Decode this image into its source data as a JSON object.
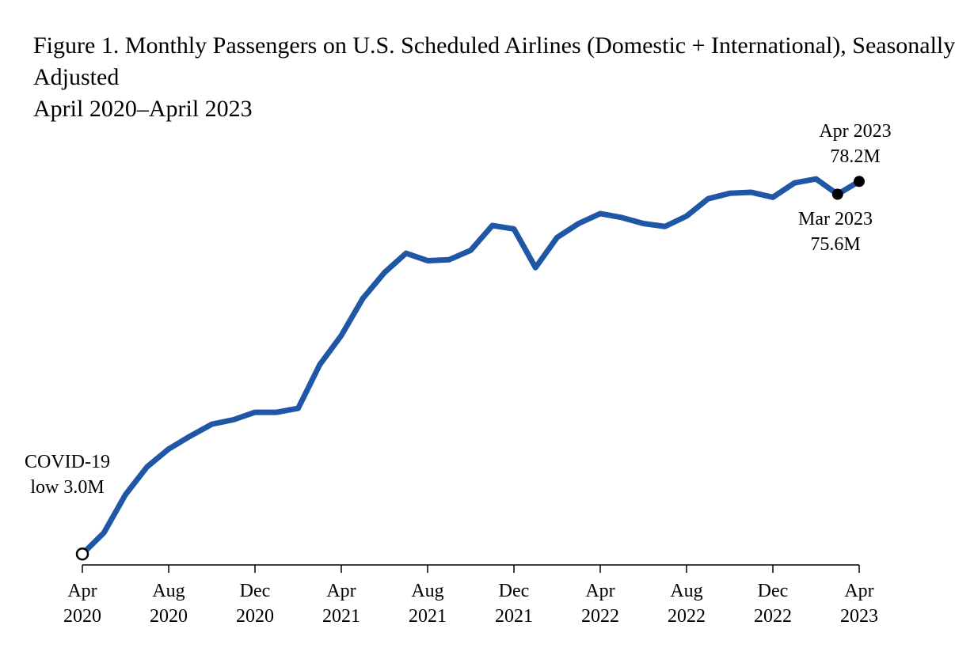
{
  "chart_data": {
    "type": "line",
    "title": "Figure 1. Monthly Passengers on U.S. Scheduled Airlines (Domestic + International), Seasonally Adjusted",
    "subtitle": "April 2020–April 2023",
    "categories": [
      "Apr 2020",
      null,
      null,
      null,
      "Aug 2020",
      null,
      null,
      null,
      "Dec 2020",
      null,
      null,
      null,
      "Apr 2021",
      null,
      null,
      null,
      "Aug 2021",
      null,
      null,
      null,
      "Dec 2021",
      null,
      null,
      null,
      "Apr 2022",
      null,
      null,
      null,
      "Aug 2022",
      null,
      null,
      null,
      "Dec 2022",
      null,
      null,
      null,
      "Apr 2023"
    ],
    "series": [
      {
        "name": "Passengers",
        "color": "#1f56a5",
        "values": [
          3.0,
          7.3,
          15.0,
          20.6,
          24.2,
          26.8,
          29.2,
          30.1,
          31.6,
          31.6,
          32.4,
          41.2,
          47.1,
          54.6,
          59.8,
          63.7,
          62.2,
          62.4,
          64.3,
          69.3,
          68.6,
          60.8,
          66.9,
          69.7,
          71.7,
          70.9,
          69.7,
          69.1,
          71.2,
          74.7,
          75.8,
          76.0,
          75.0,
          77.9,
          78.7,
          75.6,
          78.2
        ]
      }
    ],
    "ylim": [
      0,
      80
    ],
    "annotations": [
      "COVID-19 low 3.0M",
      "Apr 2023 78.2M",
      "Mar 2023 75.6M"
    ]
  }
}
